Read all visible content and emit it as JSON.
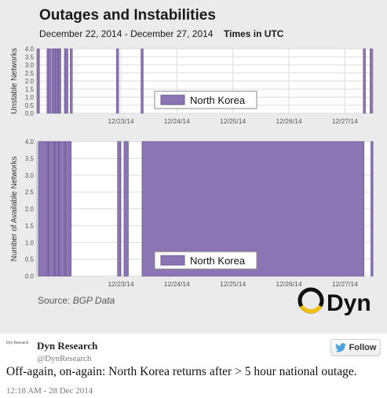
{
  "figure": {
    "title": "Outages and Instabilities",
    "subtitle": "December 22, 2014 - December 27, 2014",
    "subtitle_units": "Times in UTC",
    "source_prefix": "Source:",
    "source_name": "BGP Data",
    "logo_text": "Dyn"
  },
  "colors": {
    "series": "#8b76b3",
    "series_dark": "#6a5692",
    "plot_bg": "#ffffff",
    "grid": "#dddddd"
  },
  "chart_data": [
    {
      "type": "bar",
      "ylabel": "Unstable Networks",
      "xlabel": "",
      "xlim": [
        "2014-12-22T00:00",
        "2014-12-27T23:59"
      ],
      "ylim": [
        0,
        4
      ],
      "yticks": [
        "0.0",
        "0.5",
        "1.0",
        "1.5",
        "2.0",
        "2.5",
        "3.0",
        "3.5",
        "4.0"
      ],
      "xticks": [
        "12/23/14",
        "12/24/14",
        "12/25/14",
        "12/26/14",
        "12/27/14"
      ],
      "grid": true,
      "legend": "center",
      "series": [
        {
          "name": "North Korea",
          "points": [
            {
              "time": "2014-12-22T00:38",
              "value": 4
            },
            {
              "time": "2014-12-22T04:48",
              "value": 4
            },
            {
              "time": "2014-12-22T05:30",
              "value": 4
            },
            {
              "time": "2014-12-22T06:50",
              "value": 4
            },
            {
              "time": "2014-12-22T07:34",
              "value": 4
            },
            {
              "time": "2014-12-22T08:20",
              "value": 4
            },
            {
              "time": "2014-12-22T09:26",
              "value": 4
            },
            {
              "time": "2014-12-22T09:48",
              "value": 4
            },
            {
              "time": "2014-12-22T12:14",
              "value": 4
            },
            {
              "time": "2014-12-22T12:50",
              "value": 4
            },
            {
              "time": "2014-12-22T14:43",
              "value": 4
            },
            {
              "time": "2014-12-23T10:34",
              "value": 4
            },
            {
              "time": "2014-12-23T21:05",
              "value": 4
            },
            {
              "time": "2014-12-27T20:20",
              "value": 4
            },
            {
              "time": "2014-12-27T23:14",
              "value": 4
            }
          ]
        }
      ]
    },
    {
      "type": "area",
      "ylabel": "Number of Available Networks",
      "xlabel": "",
      "xlim": [
        "2014-12-22T00:00",
        "2014-12-27T23:59"
      ],
      "ylim": [
        0,
        4
      ],
      "yticks": [
        "0.0",
        "0.5",
        "1.0",
        "1.5",
        "2.0",
        "2.5",
        "3.0",
        "3.5",
        "4.0"
      ],
      "xticks": [
        "12/23/14",
        "12/24/14",
        "12/25/14",
        "12/26/14",
        "12/27/14"
      ],
      "grid": true,
      "legend": "bottom-center",
      "series": [
        {
          "name": "North Korea",
          "intervals": [
            {
              "start": "2014-12-22T00:40",
              "end": "2014-12-22T04:45",
              "value": 4
            },
            {
              "start": "2014-12-22T04:55",
              "end": "2014-12-22T07:30",
              "value": 4
            },
            {
              "start": "2014-12-22T07:40",
              "end": "2014-12-22T09:20",
              "value": 4
            },
            {
              "start": "2014-12-22T09:30",
              "end": "2014-12-22T12:05",
              "value": 4
            },
            {
              "start": "2014-12-22T12:20",
              "end": "2014-12-22T14:40",
              "value": 4
            },
            {
              "start": "2014-12-23T10:35",
              "end": "2014-12-23T12:00",
              "value": 4
            },
            {
              "start": "2014-12-23T13:20",
              "end": "2014-12-23T15:10",
              "value": 4
            },
            {
              "start": "2014-12-23T21:05",
              "end": "2014-12-27T20:10",
              "value": 4
            },
            {
              "start": "2014-12-27T23:10",
              "end": "2014-12-27T23:59",
              "value": 4
            }
          ]
        }
      ]
    }
  ],
  "tweet": {
    "avatar_text": "Dyn Research",
    "author": "Dyn Research",
    "handle": "@DynResearch",
    "follow_label": "Follow",
    "text": "Off-again, on-again: North Korea returns after > 5 hour national outage.",
    "timestamp": "12:18 AM - 28 Dec 2014"
  }
}
